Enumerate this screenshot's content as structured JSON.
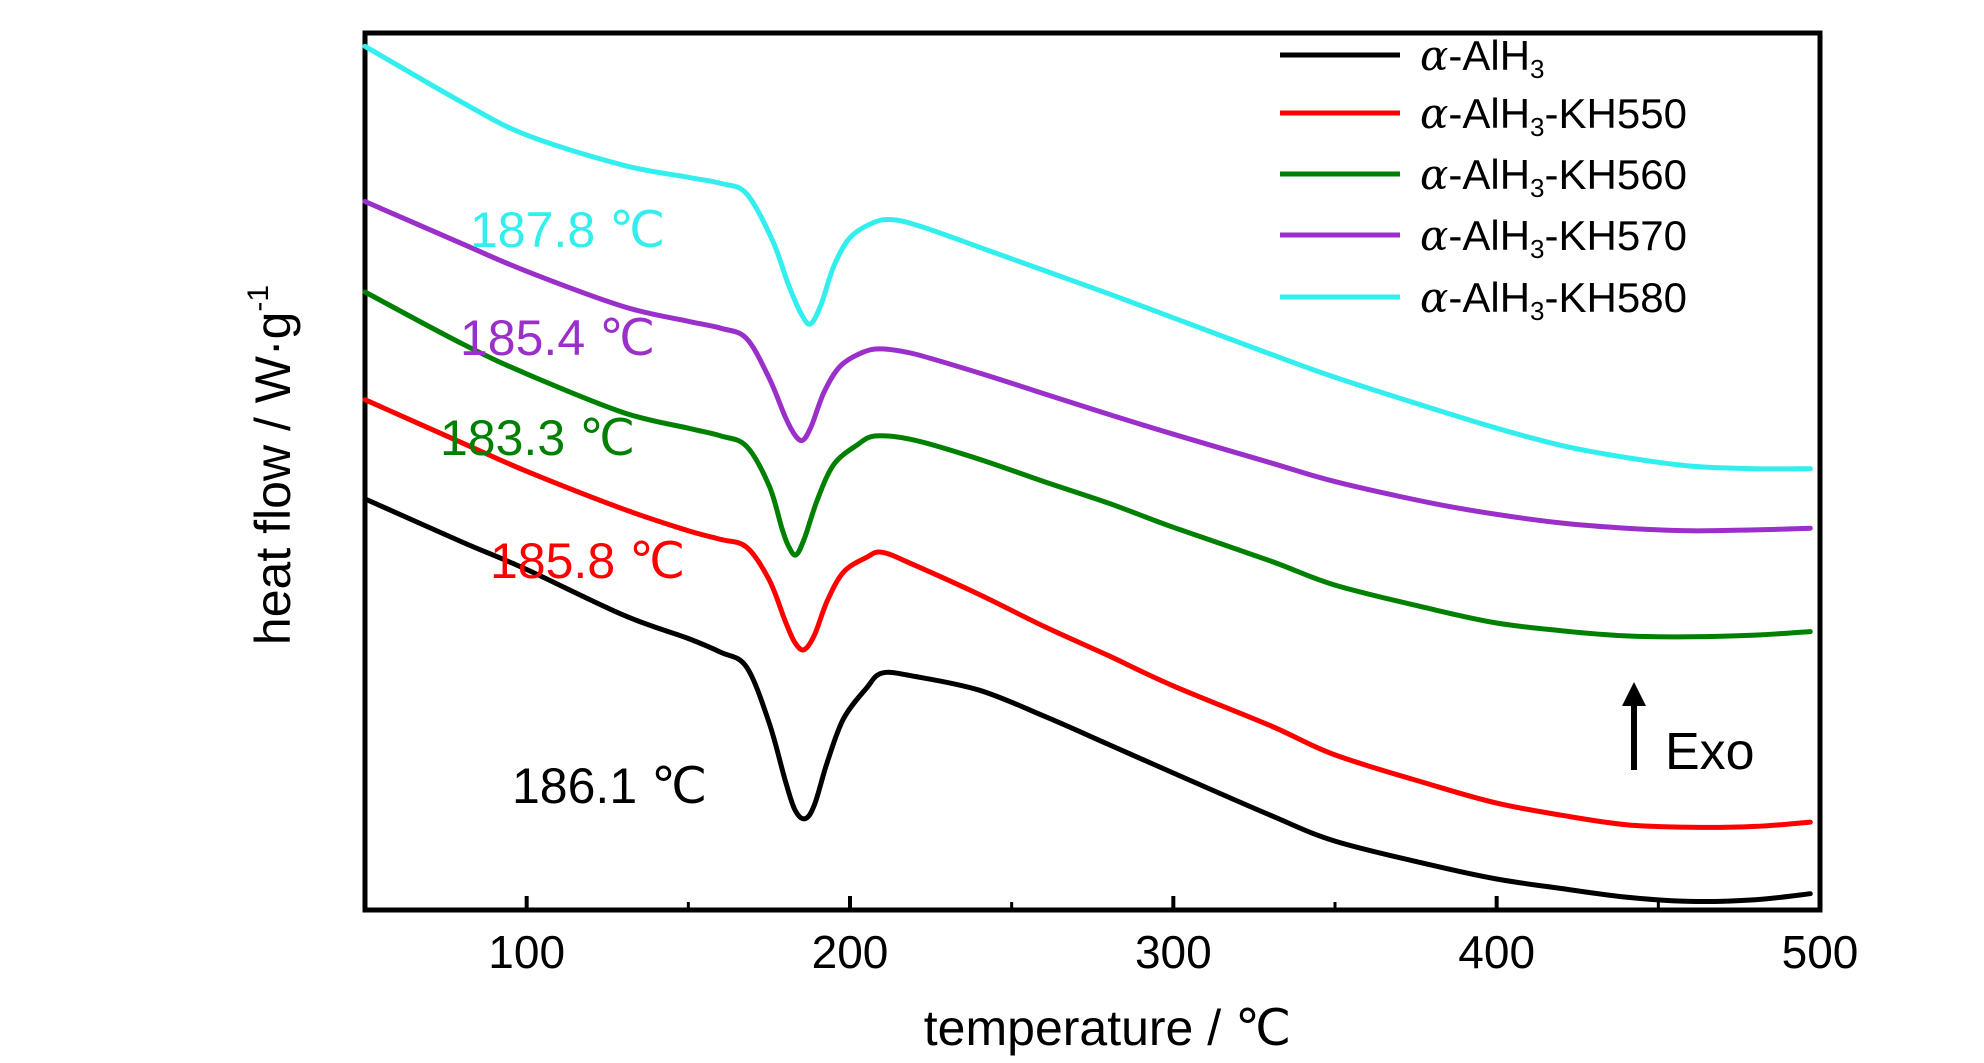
{
  "chart_data": {
    "type": "line",
    "title": "",
    "xlabel": "temperature / ℃",
    "ylabel": "heat flow / W·g",
    "ylabel_sup": "-1",
    "xlim": [
      50,
      500
    ],
    "xticks": [
      100,
      200,
      300,
      400,
      500
    ],
    "xtick_labels": [
      "100",
      "200",
      "300",
      "400",
      "500"
    ],
    "ylim": [
      0,
      100
    ],
    "yticks_shown": false,
    "grid": false,
    "legend_position": "top-right",
    "series": [
      {
        "key": "alh3",
        "name_prefix": "α",
        "name_main": "-AlH",
        "name_sub": "3",
        "name_suffix": "",
        "color": "#000000",
        "peak": "186.1 ℃",
        "x": [
          50,
          80,
          100,
          130,
          150,
          160,
          168,
          175,
          180,
          183,
          186.1,
          189,
          193,
          198,
          205,
          210,
          220,
          240,
          260,
          280,
          300,
          330,
          350,
          380,
          400,
          420,
          440,
          460,
          480,
          497
        ],
        "y": [
          47,
          42,
          38.8,
          33.5,
          30.8,
          29.2,
          27.5,
          21,
          14.3,
          10.9,
          9.9,
          11.5,
          16.5,
          21.5,
          25,
          26.8,
          26.4,
          24.8,
          21.8,
          18.5,
          15.2,
          10.3,
          7.3,
          4.5,
          2.9,
          1.8,
          0.8,
          0.3,
          0.5,
          1.2
        ]
      },
      {
        "key": "kh550",
        "name_prefix": "α",
        "name_main": "-AlH",
        "name_sub": "3",
        "name_suffix": "-KH550",
        "color": "#ff0000",
        "peak": "185.8 ℃",
        "x": [
          50,
          80,
          100,
          130,
          150,
          160,
          168,
          175,
          180,
          183,
          185.8,
          189,
          193,
          198,
          205,
          210,
          220,
          240,
          260,
          280,
          300,
          330,
          350,
          380,
          400,
          420,
          440,
          460,
          480,
          497
        ],
        "y": [
          58.5,
          53.5,
          50.2,
          45.8,
          43.3,
          42.3,
          41.4,
          37.6,
          32.8,
          30.3,
          29.5,
          31.2,
          35.2,
          38.5,
          40.2,
          40.8,
          39.3,
          35.9,
          32.2,
          28.8,
          25.3,
          20.7,
          17.3,
          13.8,
          11.7,
          10.3,
          9.2,
          8.9,
          9.0,
          9.5
        ]
      },
      {
        "key": "kh560",
        "name_prefix": "α",
        "name_main": "-AlH",
        "name_sub": "3",
        "name_suffix": "-KH560",
        "color": "#008000",
        "peak": "183.3 ℃",
        "x": [
          50,
          80,
          100,
          130,
          150,
          160,
          168,
          175,
          179,
          181,
          183.3,
          186,
          190,
          195,
          202,
          208,
          220,
          240,
          260,
          280,
          300,
          330,
          350,
          380,
          400,
          420,
          440,
          460,
          480,
          497
        ],
        "y": [
          71,
          65,
          61.5,
          57,
          55.2,
          54.3,
          53.1,
          48.5,
          43.5,
          41.5,
          40.5,
          42.5,
          47,
          51,
          53.2,
          54.3,
          53.8,
          51.6,
          49,
          46.5,
          43.7,
          39.8,
          37,
          34.2,
          32.6,
          31.7,
          31.1,
          31,
          31.2,
          31.6
        ]
      },
      {
        "key": "kh570",
        "name_prefix": "α",
        "name_main": "-AlH",
        "name_sub": "3",
        "name_suffix": "-KH570",
        "color": "#9a2fc9",
        "peak": "185.4 ℃",
        "x": [
          50,
          80,
          100,
          130,
          150,
          160,
          168,
          175,
          180,
          183,
          185.4,
          188,
          192,
          197,
          204,
          210,
          220,
          240,
          260,
          280,
          300,
          330,
          350,
          380,
          400,
          420,
          440,
          460,
          480,
          497
        ],
        "y": [
          81.5,
          76.6,
          73.4,
          69.3,
          67.6,
          66.8,
          65.6,
          61,
          56.5,
          54.4,
          53.8,
          55.4,
          59.4,
          62.4,
          64,
          64.4,
          63.8,
          61.6,
          59.2,
          56.8,
          54.5,
          51.2,
          49,
          46.5,
          45.2,
          44.2,
          43.6,
          43.3,
          43.4,
          43.6
        ]
      },
      {
        "key": "kh580",
        "name_prefix": "α",
        "name_main": "-AlH",
        "name_sub": "3",
        "name_suffix": "-KH580",
        "color": "#33eeee",
        "peak": "187.8 ℃",
        "x": [
          50,
          80,
          100,
          130,
          150,
          160,
          168,
          176,
          181,
          185,
          187.8,
          191,
          195,
          200,
          207,
          213,
          222,
          240,
          260,
          280,
          300,
          330,
          350,
          380,
          400,
          420,
          440,
          460,
          480,
          497
        ],
        "y": [
          99.5,
          93,
          89.2,
          85.7,
          84.3,
          83.6,
          82.4,
          77,
          71.8,
          68.4,
          67.3,
          69.5,
          74,
          77.3,
          79,
          79.4,
          78.6,
          76.2,
          73.5,
          70.8,
          68,
          63.8,
          61.1,
          57.5,
          55.2,
          53.2,
          51.8,
          50.8,
          50.5,
          50.5
        ]
      }
    ],
    "annotations": [
      {
        "text": "187.8 ℃",
        "series": "kh580",
        "color": "#33eeee"
      },
      {
        "text": "185.4 ℃",
        "series": "kh570",
        "color": "#9a2fc9"
      },
      {
        "text": "183.3 ℃",
        "series": "kh560",
        "color": "#008000"
      },
      {
        "text": "185.8 ℃",
        "series": "kh550",
        "color": "#ff0000"
      },
      {
        "text": "186.1 ℃",
        "series": "alh3",
        "color": "#000000"
      }
    ],
    "exo_label": "Exo"
  }
}
